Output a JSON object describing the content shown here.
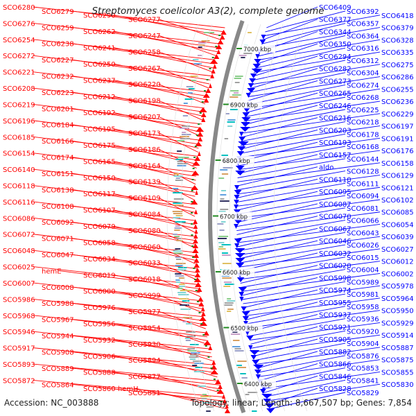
{
  "title": "Streptomyces coelicolor A3(2), complete genome",
  "accession": "Accession: NC_003888",
  "stats": "Topology: linear; Length: 8,667,507 bp; Genes: 7,854",
  "colors": {
    "reverse_strand": "#ff0000",
    "forward_strand": "#0000ff",
    "backbone": "#888888",
    "ticks": "#228b22"
  },
  "scale": {
    "unit": "kbp",
    "ticks": [
      "7000 kbp",
      "6900 kbp",
      "6800 kbp",
      "6700 kbp",
      "6600 kbp",
      "6500 kbp",
      "6400 kbp"
    ]
  },
  "left_labels": [
    "SCO6280",
    "SCO6279",
    "SCO6290",
    "SCO6277",
    "SCO6276",
    "SCO6259",
    "SCO6262",
    "SCO6247",
    "SCO6254",
    "SCO6238",
    "SCO6241",
    "SCO6258",
    "SCO6272",
    "SCO6227",
    "SCO6250",
    "SCO6267",
    "SCO6221",
    "SCO6232",
    "SCO6237",
    "SCO6220",
    "SCO6208",
    "SCO6223",
    "SCO6212",
    "SCO6198",
    "SCO6219",
    "SCO6201",
    "SCO6192",
    "SCO6207",
    "SCO6196",
    "SCO6184",
    "SCO6195",
    "SCO6173",
    "SCO6185",
    "SCO6166",
    "SCO6175",
    "SCO6186",
    "SCO6154",
    "SCO6174",
    "SCO6165",
    "SCO6164",
    "SCO6140",
    "SCO6151",
    "SCO6150",
    "SCO6139",
    "SCO6118",
    "SCO6138",
    "SCO6117",
    "SCO6109",
    "SCO6116",
    "SCO6108",
    "SCO6107",
    "SCO6084",
    "SCO6086",
    "SCO6092",
    "SCO6079",
    "SCO6080",
    "SCO6072",
    "SCO6071",
    "SCO6058",
    "SCO6060",
    "SCO6048",
    "SCO6047",
    "SCO6034",
    "SCO6033",
    "SCO6025",
    "hemE",
    "SCO6019",
    "SCO6018",
    "SCO6007",
    "SCO6008",
    "SCO6000",
    "SCO5999",
    "SCO5986",
    "SCO5988",
    "SCO5976",
    "SCO5977",
    "SCO5968",
    "SCO5967",
    "SCO5956",
    "SCO5954",
    "SCO5946",
    "SCO5944",
    "SCO5932",
    "SCO5930",
    "SCO5917",
    "SCO5908",
    "SCO5906",
    "SCO5894",
    "SCO5893",
    "SCO5889",
    "SCO5888",
    "SCO5877",
    "SCO5872",
    "SCO5864",
    "SCO5860 hemH",
    "SCO5851"
  ],
  "right_labels": [
    "SCO6409",
    "SCO6392",
    "SCO6418",
    "SCO6377",
    "SCO6357",
    "SCO6379",
    "SCO6344",
    "SCO6364",
    "SCO6328",
    "SCO6350",
    "SCO6316",
    "SCO6335",
    "SCO6294",
    "SCO6312",
    "SCO6275",
    "SCO6282",
    "SCO6304",
    "SCO6286",
    "SCO6273",
    "SCO6274",
    "SCO6255",
    "SCO6265",
    "SCO6268",
    "SCO6236",
    "SCO6246",
    "SCO6225",
    "SCO6229",
    "SCO6216",
    "SCO6218",
    "SCO6197",
    "SCO6203",
    "SCO6178",
    "SCO6191",
    "SCO6193",
    "SCO6168",
    "SCO6176",
    "SCO6157",
    "SCO6144",
    "SCO6158",
    "aldo",
    "SCO6128",
    "SCO6129",
    "SCO6110",
    "SCO6111",
    "SCO6121",
    "SCO6095",
    "SCO6094",
    "SCO6102",
    "SCO6087",
    "SCO6081",
    "SCO6085",
    "SCO6070",
    "SCO6066",
    "SCO6054",
    "SCO6067",
    "SCO6043",
    "SCO6039",
    "SCO6046",
    "SCO6026",
    "SCO6027",
    "SCO6032",
    "SCO6015",
    "SCO6012",
    "SCO6020",
    "SCO6004",
    "SCO6002",
    "SCO5998",
    "SCO5989",
    "SCO5978",
    "SCO5974",
    "SCO5981",
    "SCO5964",
    "SCO5955",
    "SCO5958",
    "SCO5950",
    "SCO5937",
    "SCO5936",
    "SCO5929",
    "SCO5921",
    "SCO5920",
    "SCO5914",
    "SCO5905",
    "SCO5904",
    "SCO5887",
    "SCO5882",
    "SCO5876",
    "SCO5875",
    "SCO5866",
    "SCO5853",
    "SCO5855",
    "SCO5846",
    "SCO5841",
    "SCO5830",
    "SCO5828",
    "SCO5829"
  ]
}
